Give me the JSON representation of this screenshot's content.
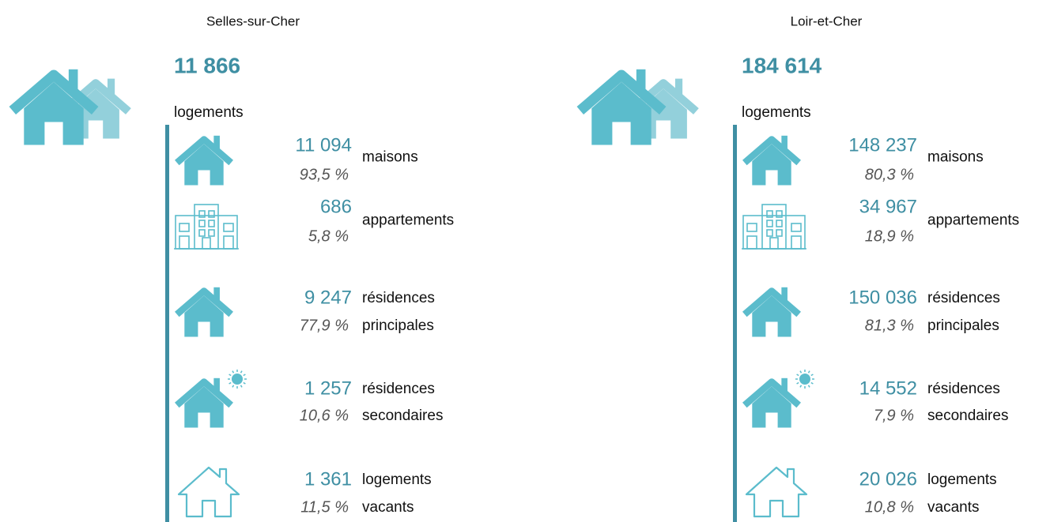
{
  "panels": [
    {
      "area": "Selles-sur-Cher",
      "total": "11 866",
      "total_label": "logements",
      "items": [
        {
          "value": "11 094",
          "pct": "93,5 %",
          "label": [
            "maisons"
          ]
        },
        {
          "value": "686",
          "pct": "5,8 %",
          "label": [
            "appartements"
          ]
        },
        {
          "value": "9 247",
          "pct": "77,9 %",
          "label": [
            "résidences",
            "principales"
          ]
        },
        {
          "value": "1 257",
          "pct": "10,6 %",
          "label": [
            "résidences",
            "secondaires"
          ]
        },
        {
          "value": "1 361",
          "pct": "11,5 %",
          "label": [
            "logements",
            "vacants"
          ]
        }
      ]
    },
    {
      "area": "Loir-et-Cher",
      "total": "184 614",
      "total_label": "logements",
      "items": [
        {
          "value": "148 237",
          "pct": "80,3 %",
          "label": [
            "maisons"
          ]
        },
        {
          "value": "34 967",
          "pct": "18,9 %",
          "label": [
            "appartements"
          ]
        },
        {
          "value": "150 036",
          "pct": "81,3 %",
          "label": [
            "résidences",
            "principales"
          ]
        },
        {
          "value": "14 552",
          "pct": "7,9 %",
          "label": [
            "résidences",
            "secondaires"
          ]
        },
        {
          "value": "20 026",
          "pct": "10,8 %",
          "label": [
            "logements",
            "vacants"
          ]
        }
      ]
    }
  ]
}
